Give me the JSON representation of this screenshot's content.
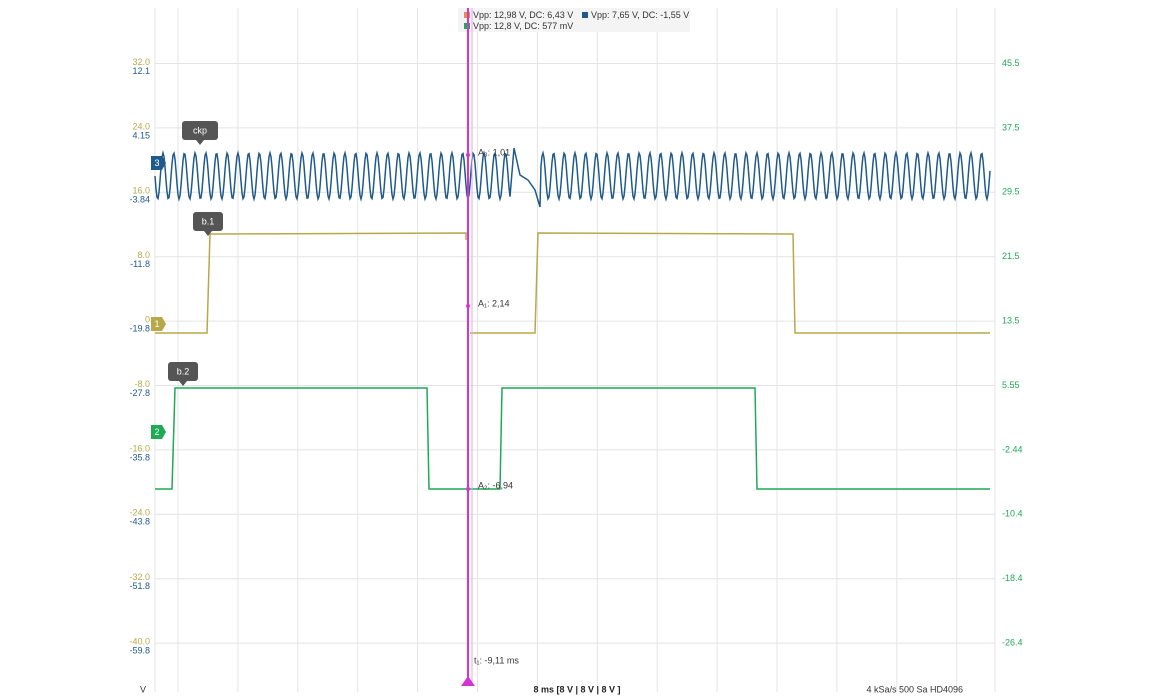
{
  "legend": [
    "Vpp: 12,98 V, DC: 6,43 V",
    "Vpp: 7,65 V, DC: -1,55 V",
    "Vpp: 12,8 V, DC: 577 mV"
  ],
  "scales": {
    "channel_1": [
      "32.0",
      "24.0",
      "16.0",
      "8.0",
      "0",
      "-8.0",
      "-16.0",
      "-24.0",
      "-32.0",
      "-40.0"
    ],
    "channel_3": [
      "12.1",
      "4.15",
      "-3.84",
      "-11.8",
      "-19.8",
      "-27.8",
      "-35.8",
      "-43.8",
      "-51.8",
      "-59.8"
    ],
    "channel_2": [
      "45.5",
      "37.5",
      "29.5",
      "21.5",
      "13.5",
      "5.55",
      "-2.44",
      "-10.4",
      "-18.4",
      "-26.4"
    ],
    "unit": "V"
  },
  "channel_tags": [
    "3",
    "1",
    "2"
  ],
  "markers": [
    "ckp",
    "b.1",
    "b.2"
  ],
  "cursor": {
    "a3": "A₃: 1,01",
    "a1": "A₁: 2,14",
    "a2": "A₂: -6,94",
    "t1": "t₁: -9,11 ms"
  },
  "status": {
    "timebase": "8 ms  [8 V | 8 V | 8 V ]",
    "sampling": "4 kSa/s   500 Sa   HD4096"
  }
}
